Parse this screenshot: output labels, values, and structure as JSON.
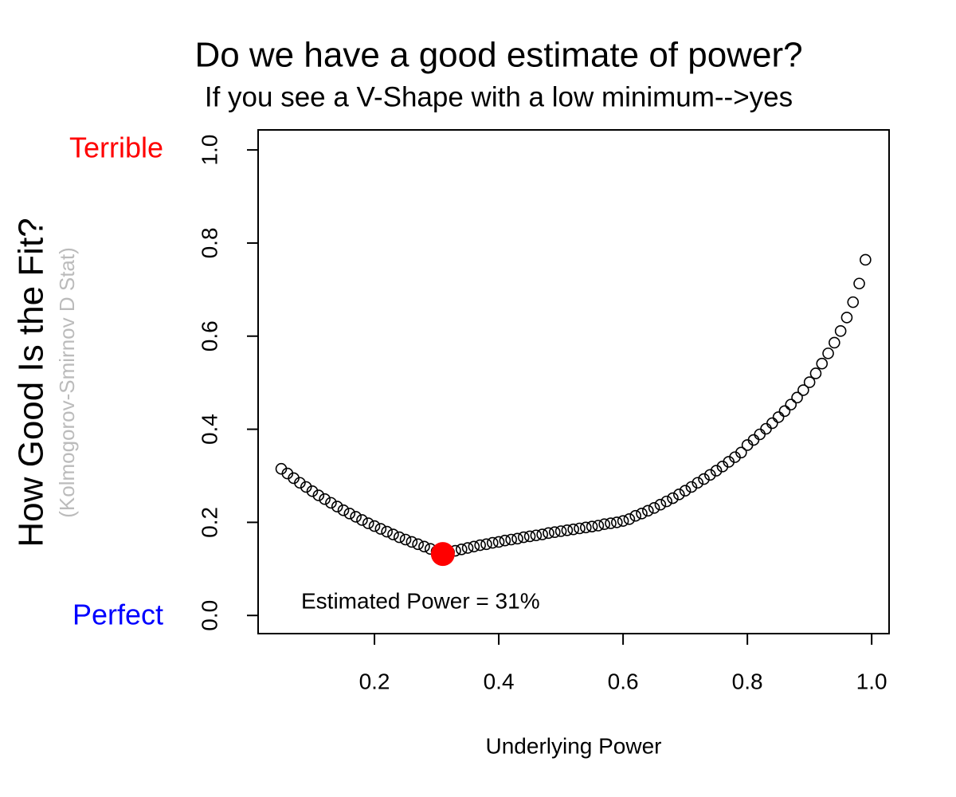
{
  "chart_data": {
    "type": "scatter",
    "title": "Do we have a good estimate of power?",
    "subtitle": "If you see a V-Shape with a low minimum-->yes",
    "x_label": "Underlying Power",
    "y_label": "How Good Is the Fit?",
    "y_label_note": "(Kolmogorov-Smirnov D Stat)",
    "y_top_label": "Terrible",
    "y_top_color": "#ff0000",
    "y_bottom_label": "Perfect",
    "y_bottom_color": "#0000ff",
    "annotation": "Estimated Power = 31%",
    "xlim": [
      0.0128,
      1.028
    ],
    "ylim": [
      -0.039,
      1.043
    ],
    "xticks": [
      0.2,
      0.4,
      0.6,
      0.8,
      {
        "value": 1,
        "label": "1.0"
      }
    ],
    "yticks": [
      {
        "value": 0,
        "label": "0.0"
      },
      0.2,
      0.4,
      0.6,
      0.8,
      {
        "value": 1,
        "label": "1.0"
      }
    ],
    "series": [
      {
        "color": "#000000",
        "x": [
          0.05,
          0.06,
          0.07,
          0.08,
          0.09,
          0.1,
          0.11,
          0.12,
          0.13,
          0.14,
          0.15,
          0.16,
          0.17,
          0.18,
          0.19,
          0.2,
          0.21,
          0.22,
          0.23,
          0.24,
          0.25,
          0.26,
          0.27,
          0.28,
          0.29,
          0.3,
          0.31,
          0.32,
          0.33,
          0.34,
          0.35,
          0.36,
          0.37,
          0.38,
          0.39,
          0.4,
          0.41,
          0.42,
          0.43,
          0.44,
          0.45,
          0.46,
          0.47,
          0.48,
          0.49,
          0.5,
          0.51,
          0.52,
          0.53,
          0.54,
          0.55,
          0.56,
          0.57,
          0.58,
          0.59,
          0.6,
          0.61,
          0.62,
          0.63,
          0.64,
          0.65,
          0.66,
          0.67,
          0.68,
          0.69,
          0.7,
          0.71,
          0.72,
          0.73,
          0.74,
          0.75,
          0.76,
          0.77,
          0.78,
          0.79,
          0.8,
          0.81,
          0.82,
          0.83,
          0.84,
          0.85,
          0.86,
          0.87,
          0.88,
          0.89,
          0.9,
          0.91,
          0.92,
          0.93,
          0.94,
          0.95,
          0.96,
          0.97,
          0.98,
          0.99
        ],
        "values": [
          0.315,
          0.305,
          0.295,
          0.285,
          0.276,
          0.267,
          0.258,
          0.25,
          0.242,
          0.234,
          0.226,
          0.219,
          0.212,
          0.205,
          0.198,
          0.192,
          0.186,
          0.18,
          0.174,
          0.168,
          0.163,
          0.158,
          0.153,
          0.148,
          0.143,
          0.138,
          0.132,
          0.136,
          0.139,
          0.142,
          0.145,
          0.148,
          0.151,
          0.153,
          0.156,
          0.158,
          0.161,
          0.163,
          0.165,
          0.168,
          0.17,
          0.172,
          0.174,
          0.177,
          0.179,
          0.181,
          0.183,
          0.185,
          0.187,
          0.189,
          0.191,
          0.193,
          0.196,
          0.198,
          0.2,
          0.203,
          0.207,
          0.214,
          0.219,
          0.225,
          0.231,
          0.238,
          0.245,
          0.252,
          0.26,
          0.268,
          0.276,
          0.285,
          0.293,
          0.302,
          0.311,
          0.32,
          0.33,
          0.34,
          0.35,
          0.366,
          0.377,
          0.389,
          0.401,
          0.413,
          0.426,
          0.439,
          0.453,
          0.468,
          0.484,
          0.501,
          0.52,
          0.541,
          0.563,
          0.586,
          0.611,
          0.64,
          0.673,
          0.713,
          0.764
        ]
      },
      {
        "color": "#ff0000",
        "x": [
          0.31
        ],
        "values": [
          0.132
        ]
      }
    ]
  }
}
